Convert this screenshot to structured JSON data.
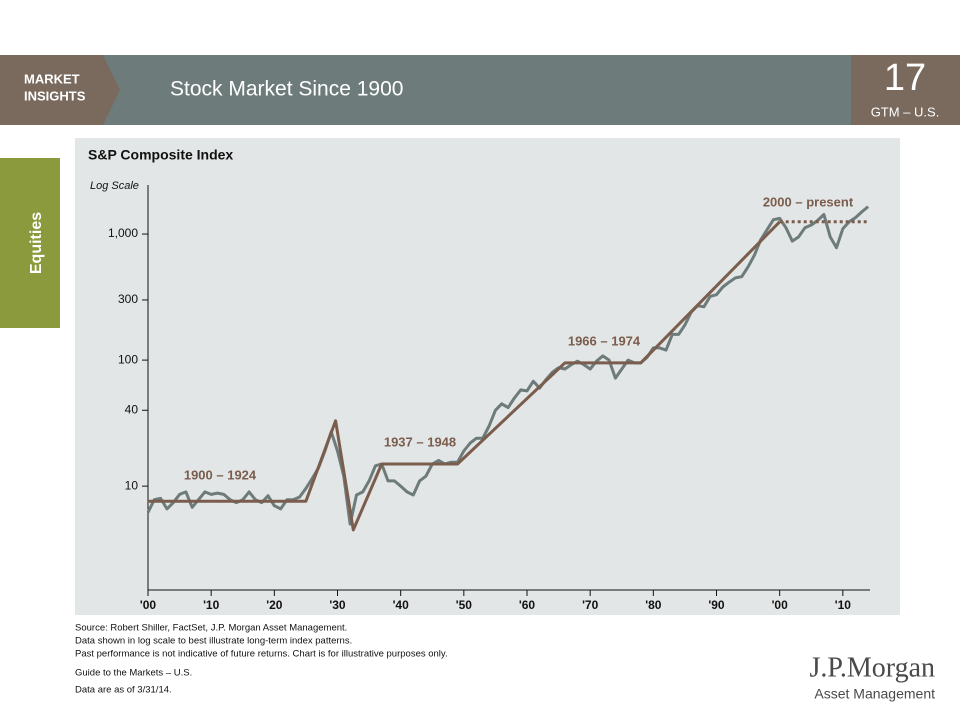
{
  "header": {
    "badge_lines": [
      "MARKET",
      "INSIGHTS"
    ],
    "title": "Stock Market Since 1900",
    "page_number": "17",
    "page_label": "GTM – U.S."
  },
  "side_tab": "Equities",
  "chart_data": {
    "type": "line",
    "title": "S&P Composite Index",
    "y_label": "Log Scale",
    "y_scale": "log",
    "xlim": [
      1900,
      2014.3
    ],
    "ylim": [
      1.5,
      2450
    ],
    "xticks": [
      {
        "value": 1900,
        "label": "'00"
      },
      {
        "value": 1910,
        "label": "'10"
      },
      {
        "value": 1920,
        "label": "'20"
      },
      {
        "value": 1930,
        "label": "'30"
      },
      {
        "value": 1940,
        "label": "'40"
      },
      {
        "value": 1950,
        "label": "'50"
      },
      {
        "value": 1960,
        "label": "'60"
      },
      {
        "value": 1970,
        "label": "'70"
      },
      {
        "value": 1980,
        "label": "'80"
      },
      {
        "value": 1990,
        "label": "'90"
      },
      {
        "value": 2000,
        "label": "'00"
      },
      {
        "value": 2010,
        "label": "'10"
      }
    ],
    "yticks": [
      10,
      40,
      100,
      300,
      {
        "value": 1000,
        "label": "1,000"
      }
    ],
    "series": [
      {
        "color": "#6d7b7b",
        "x": [
          1900,
          1901,
          1902,
          1903,
          1904,
          1905,
          1906,
          1907,
          1908,
          1909,
          1910,
          1911,
          1912,
          1913,
          1914,
          1915,
          1916,
          1917,
          1918,
          1919,
          1920,
          1921,
          1922,
          1923,
          1924,
          1925,
          1926,
          1927,
          1928,
          1929,
          1930,
          1931,
          1932,
          1933,
          1934,
          1935,
          1936,
          1937,
          1938,
          1939,
          1940,
          1941,
          1942,
          1943,
          1944,
          1945,
          1946,
          1947,
          1948,
          1949,
          1950,
          1951,
          1952,
          1953,
          1954,
          1955,
          1956,
          1957,
          1958,
          1959,
          1960,
          1961,
          1962,
          1963,
          1964,
          1965,
          1966,
          1967,
          1968,
          1969,
          1970,
          1971,
          1972,
          1973,
          1974,
          1975,
          1976,
          1977,
          1978,
          1979,
          1980,
          1981,
          1982,
          1983,
          1984,
          1985,
          1986,
          1987,
          1988,
          1989,
          1990,
          1991,
          1992,
          1993,
          1994,
          1995,
          1996,
          1997,
          1998,
          1999,
          2000,
          2001,
          2002,
          2003,
          2004,
          2005,
          2006,
          2007,
          2008,
          2009,
          2010,
          2011,
          2012,
          2013,
          2014
        ],
        "values": [
          6.2,
          7.8,
          8,
          6.6,
          7.4,
          8.6,
          9,
          6.8,
          7.8,
          9,
          8.6,
          8.8,
          8.6,
          7.8,
          7.4,
          7.8,
          9,
          7.8,
          7.4,
          8.4,
          7,
          6.6,
          7.8,
          7.8,
          8.2,
          9.6,
          11.5,
          14,
          19,
          27,
          19,
          12,
          5,
          8.5,
          9,
          11,
          14.5,
          15,
          11,
          11,
          10,
          9,
          8.5,
          11,
          12,
          15,
          16,
          15,
          15.5,
          15.5,
          19,
          22,
          24,
          24,
          30,
          40,
          45,
          42,
          50,
          58,
          57,
          68,
          60,
          70,
          80,
          87,
          85,
          92,
          98,
          92,
          85,
          98,
          108,
          100,
          72,
          85,
          100,
          95,
          95,
          105,
          125,
          125,
          120,
          160,
          160,
          190,
          240,
          270,
          265,
          320,
          330,
          380,
          415,
          450,
          460,
          550,
          680,
          900,
          1080,
          1300,
          1330,
          1120,
          880,
          950,
          1120,
          1180,
          1280,
          1430,
          950,
          780,
          1100,
          1250,
          1350,
          1500,
          1650
        ]
      },
      {
        "color": "#7b5d4e",
        "x": [
          1900,
          1925,
          1929.7,
          1932.5,
          1937,
          1949,
          1966,
          1978,
          2000
        ],
        "values": [
          7.6,
          7.6,
          33,
          4.5,
          15,
          15,
          95,
          95,
          1250
        ]
      },
      {
        "color": "#7b5d4e",
        "dash": true,
        "x": [
          2000,
          2014
        ],
        "values": [
          1250,
          1250
        ]
      }
    ],
    "annotations": [
      "1900 – 1924",
      "1937 – 1948",
      "1966 – 1974",
      "2000 – present"
    ]
  },
  "footer": {
    "notes": [
      "Source: Robert Shiller, FactSet, J.P. Morgan Asset Management.",
      "Data shown in log scale to best illustrate long-term index patterns.",
      "Past performance is not indicative of future returns. Chart is for illustrative purposes only."
    ],
    "guide": "Guide to the Markets – U.S.",
    "date": "Data are as of 3/31/14."
  },
  "logo": {
    "name": "J.P.Morgan",
    "sub": "Asset Management"
  }
}
